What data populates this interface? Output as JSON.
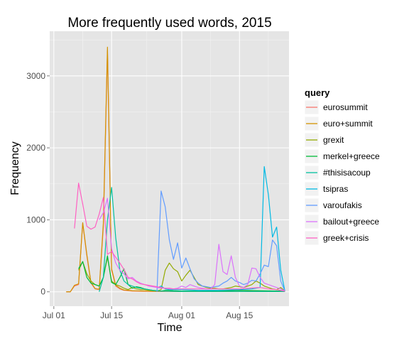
{
  "chart_data": {
    "type": "line",
    "title": "More frequently used words, 2015",
    "xlabel": "Time",
    "ylabel": "Frequency",
    "x_range": [
      "2015-06-30",
      "2015-08-27"
    ],
    "ylim": [
      -200,
      3620
    ],
    "x_ticks": [
      {
        "date": "2015-07-01",
        "label": "Jul 01"
      },
      {
        "date": "2015-07-15",
        "label": "Jul 15"
      },
      {
        "date": "2015-08-01",
        "label": "Aug 01"
      },
      {
        "date": "2015-08-15",
        "label": "Aug 15"
      }
    ],
    "y_ticks": [
      0,
      1000,
      2000,
      3000
    ],
    "grid": true,
    "legend": {
      "title": "query",
      "position": "right"
    },
    "series": [
      {
        "name": "eurosummit",
        "color": "#F8766D",
        "points": [
          [
            "2015-07-04",
            0
          ],
          [
            "2015-07-05",
            0
          ],
          [
            "2015-07-06",
            80
          ],
          [
            "2015-07-07",
            100
          ],
          [
            "2015-07-08",
            950
          ],
          [
            "2015-07-09",
            500
          ],
          [
            "2015-07-10",
            120
          ],
          [
            "2015-07-11",
            40
          ],
          [
            "2015-07-12",
            30
          ],
          [
            "2015-07-13",
            900
          ],
          [
            "2015-07-14",
            3350
          ],
          [
            "2015-07-15",
            300
          ],
          [
            "2015-07-16",
            80
          ],
          [
            "2015-07-17",
            40
          ],
          [
            "2015-07-18",
            20
          ],
          [
            "2015-07-20",
            10
          ],
          [
            "2015-07-25",
            5
          ],
          [
            "2015-08-01",
            5
          ],
          [
            "2015-08-10",
            5
          ],
          [
            "2015-08-20",
            5
          ],
          [
            "2015-08-26",
            5
          ]
        ]
      },
      {
        "name": "euro+summit",
        "color": "#D39200",
        "points": [
          [
            "2015-07-04",
            0
          ],
          [
            "2015-07-05",
            0
          ],
          [
            "2015-07-06",
            90
          ],
          [
            "2015-07-07",
            110
          ],
          [
            "2015-07-08",
            960
          ],
          [
            "2015-07-09",
            520
          ],
          [
            "2015-07-10",
            130
          ],
          [
            "2015-07-11",
            45
          ],
          [
            "2015-07-12",
            35
          ],
          [
            "2015-07-13",
            950
          ],
          [
            "2015-07-14",
            3400
          ],
          [
            "2015-07-15",
            320
          ],
          [
            "2015-07-16",
            90
          ],
          [
            "2015-07-17",
            50
          ],
          [
            "2015-07-18",
            25
          ],
          [
            "2015-07-20",
            15
          ],
          [
            "2015-07-25",
            8
          ],
          [
            "2015-08-01",
            5
          ],
          [
            "2015-08-10",
            5
          ],
          [
            "2015-08-20",
            5
          ],
          [
            "2015-08-26",
            5
          ]
        ]
      },
      {
        "name": "grexit",
        "color": "#93AA00",
        "points": [
          [
            "2015-07-07",
            300
          ],
          [
            "2015-07-08",
            420
          ],
          [
            "2015-07-09",
            250
          ],
          [
            "2015-07-10",
            150
          ],
          [
            "2015-07-11",
            100
          ],
          [
            "2015-07-12",
            80
          ],
          [
            "2015-07-13",
            200
          ],
          [
            "2015-07-14",
            480
          ],
          [
            "2015-07-15",
            150
          ],
          [
            "2015-07-16",
            100
          ],
          [
            "2015-07-17",
            80
          ],
          [
            "2015-07-18",
            50
          ],
          [
            "2015-07-19",
            30
          ],
          [
            "2015-07-20",
            60
          ],
          [
            "2015-07-21",
            40
          ],
          [
            "2015-07-22",
            30
          ],
          [
            "2015-07-23",
            30
          ],
          [
            "2015-07-24",
            20
          ],
          [
            "2015-07-25",
            15
          ],
          [
            "2015-07-26",
            10
          ],
          [
            "2015-07-27",
            30
          ],
          [
            "2015-07-28",
            300
          ],
          [
            "2015-07-29",
            400
          ],
          [
            "2015-07-30",
            320
          ],
          [
            "2015-07-31",
            280
          ],
          [
            "2015-08-01",
            150
          ],
          [
            "2015-08-02",
            230
          ],
          [
            "2015-08-03",
            300
          ],
          [
            "2015-08-04",
            200
          ],
          [
            "2015-08-05",
            100
          ],
          [
            "2015-08-06",
            80
          ],
          [
            "2015-08-07",
            60
          ],
          [
            "2015-08-08",
            50
          ],
          [
            "2015-08-09",
            50
          ],
          [
            "2015-08-10",
            40
          ],
          [
            "2015-08-11",
            40
          ],
          [
            "2015-08-12",
            50
          ],
          [
            "2015-08-13",
            60
          ],
          [
            "2015-08-14",
            80
          ],
          [
            "2015-08-15",
            70
          ],
          [
            "2015-08-16",
            60
          ],
          [
            "2015-08-17",
            80
          ],
          [
            "2015-08-18",
            100
          ],
          [
            "2015-08-19",
            150
          ],
          [
            "2015-08-20",
            120
          ],
          [
            "2015-08-21",
            80
          ],
          [
            "2015-08-22",
            60
          ],
          [
            "2015-08-23",
            40
          ],
          [
            "2015-08-24",
            30
          ],
          [
            "2015-08-25",
            60
          ],
          [
            "2015-08-26",
            10
          ]
        ]
      },
      {
        "name": "merkel+greece",
        "color": "#00BA38",
        "points": [
          [
            "2015-07-07",
            320
          ],
          [
            "2015-07-08",
            420
          ],
          [
            "2015-07-09",
            200
          ],
          [
            "2015-07-10",
            120
          ],
          [
            "2015-07-11",
            100
          ],
          [
            "2015-07-12",
            80
          ],
          [
            "2015-07-13",
            200
          ],
          [
            "2015-07-14",
            500
          ],
          [
            "2015-07-15",
            130
          ],
          [
            "2015-07-16",
            100
          ],
          [
            "2015-07-17",
            200
          ],
          [
            "2015-07-18",
            320
          ],
          [
            "2015-07-19",
            100
          ],
          [
            "2015-07-20",
            50
          ],
          [
            "2015-07-21",
            70
          ],
          [
            "2015-07-22",
            60
          ],
          [
            "2015-07-23",
            40
          ],
          [
            "2015-07-24",
            30
          ],
          [
            "2015-07-25",
            20
          ],
          [
            "2015-07-26",
            15
          ],
          [
            "2015-07-27",
            10
          ],
          [
            "2015-07-28",
            20
          ],
          [
            "2015-07-29",
            20
          ],
          [
            "2015-07-30",
            15
          ],
          [
            "2015-08-01",
            10
          ],
          [
            "2015-08-05",
            10
          ],
          [
            "2015-08-10",
            15
          ],
          [
            "2015-08-15",
            20
          ],
          [
            "2015-08-20",
            15
          ],
          [
            "2015-08-26",
            10
          ]
        ]
      },
      {
        "name": "#thisisacoup",
        "color": "#00C19F",
        "points": [
          [
            "2015-07-12",
            0
          ],
          [
            "2015-07-13",
            200
          ],
          [
            "2015-07-14",
            1000
          ],
          [
            "2015-07-15",
            1450
          ],
          [
            "2015-07-16",
            750
          ],
          [
            "2015-07-17",
            300
          ],
          [
            "2015-07-18",
            150
          ],
          [
            "2015-07-19",
            100
          ],
          [
            "2015-07-20",
            80
          ],
          [
            "2015-07-21",
            60
          ],
          [
            "2015-07-22",
            50
          ],
          [
            "2015-07-23",
            40
          ],
          [
            "2015-07-24",
            30
          ],
          [
            "2015-07-25",
            20
          ],
          [
            "2015-07-26",
            15
          ],
          [
            "2015-07-27",
            10
          ],
          [
            "2015-08-01",
            5
          ],
          [
            "2015-08-10",
            5
          ],
          [
            "2015-08-20",
            5
          ],
          [
            "2015-08-26",
            5
          ]
        ]
      },
      {
        "name": "tsipras",
        "color": "#00B9E3",
        "points": [
          [
            "2015-07-26",
            50
          ],
          [
            "2015-07-27",
            80
          ],
          [
            "2015-07-28",
            40
          ],
          [
            "2015-07-29",
            30
          ],
          [
            "2015-07-30",
            30
          ],
          [
            "2015-08-01",
            30
          ],
          [
            "2015-08-05",
            20
          ],
          [
            "2015-08-10",
            20
          ],
          [
            "2015-08-15",
            30
          ],
          [
            "2015-08-18",
            40
          ],
          [
            "2015-08-20",
            60
          ],
          [
            "2015-08-21",
            1740
          ],
          [
            "2015-08-22",
            1350
          ],
          [
            "2015-08-23",
            760
          ],
          [
            "2015-08-24",
            900
          ],
          [
            "2015-08-25",
            300
          ],
          [
            "2015-08-26",
            10
          ]
        ]
      },
      {
        "name": "varoufakis",
        "color": "#619CFF",
        "points": [
          [
            "2015-07-26",
            1
          ],
          [
            "2015-07-27",
            1400
          ],
          [
            "2015-07-28",
            1180
          ],
          [
            "2015-07-29",
            720
          ],
          [
            "2015-07-30",
            450
          ],
          [
            "2015-07-31",
            680
          ],
          [
            "2015-08-01",
            330
          ],
          [
            "2015-08-02",
            470
          ],
          [
            "2015-08-03",
            320
          ],
          [
            "2015-08-04",
            180
          ],
          [
            "2015-08-05",
            120
          ],
          [
            "2015-08-06",
            80
          ],
          [
            "2015-08-07",
            70
          ],
          [
            "2015-08-08",
            60
          ],
          [
            "2015-08-09",
            70
          ],
          [
            "2015-08-10",
            80
          ],
          [
            "2015-08-11",
            120
          ],
          [
            "2015-08-12",
            150
          ],
          [
            "2015-08-13",
            200
          ],
          [
            "2015-08-14",
            150
          ],
          [
            "2015-08-15",
            130
          ],
          [
            "2015-08-16",
            100
          ],
          [
            "2015-08-17",
            120
          ],
          [
            "2015-08-18",
            160
          ],
          [
            "2015-08-19",
            150
          ],
          [
            "2015-08-20",
            250
          ],
          [
            "2015-08-21",
            370
          ],
          [
            "2015-08-22",
            350
          ],
          [
            "2015-08-23",
            720
          ],
          [
            "2015-08-24",
            640
          ],
          [
            "2015-08-25",
            150
          ],
          [
            "2015-08-26",
            10
          ]
        ]
      },
      {
        "name": "bailout+greece",
        "color": "#DB72FB",
        "points": [
          [
            "2015-07-12",
            1000
          ],
          [
            "2015-07-13",
            1100
          ],
          [
            "2015-07-14",
            1300
          ],
          [
            "2015-07-15",
            600
          ],
          [
            "2015-07-16",
            400
          ],
          [
            "2015-07-17",
            300
          ],
          [
            "2015-07-18",
            250
          ],
          [
            "2015-07-19",
            180
          ],
          [
            "2015-07-20",
            200
          ],
          [
            "2015-07-21",
            150
          ],
          [
            "2015-07-22",
            120
          ],
          [
            "2015-07-23",
            100
          ],
          [
            "2015-07-24",
            80
          ],
          [
            "2015-07-25",
            70
          ],
          [
            "2015-07-26",
            60
          ],
          [
            "2015-07-27",
            50
          ],
          [
            "2015-07-28",
            50
          ],
          [
            "2015-07-29",
            40
          ],
          [
            "2015-07-30",
            40
          ],
          [
            "2015-07-31",
            50
          ],
          [
            "2015-08-01",
            80
          ],
          [
            "2015-08-02",
            60
          ],
          [
            "2015-08-03",
            100
          ],
          [
            "2015-08-04",
            80
          ],
          [
            "2015-08-05",
            60
          ],
          [
            "2015-08-06",
            50
          ],
          [
            "2015-08-07",
            40
          ],
          [
            "2015-08-08",
            40
          ],
          [
            "2015-08-09",
            100
          ],
          [
            "2015-08-10",
            660
          ],
          [
            "2015-08-11",
            280
          ],
          [
            "2015-08-12",
            240
          ],
          [
            "2015-08-13",
            500
          ],
          [
            "2015-08-14",
            200
          ],
          [
            "2015-08-15",
            80
          ],
          [
            "2015-08-16",
            60
          ],
          [
            "2015-08-17",
            100
          ],
          [
            "2015-08-18",
            330
          ],
          [
            "2015-08-19",
            320
          ],
          [
            "2015-08-20",
            200
          ],
          [
            "2015-08-21",
            120
          ],
          [
            "2015-08-22",
            100
          ],
          [
            "2015-08-23",
            80
          ],
          [
            "2015-08-24",
            60
          ],
          [
            "2015-08-25",
            40
          ],
          [
            "2015-08-26",
            10
          ]
        ]
      },
      {
        "name": "greek+crisis",
        "color": "#FF61C3",
        "points": [
          [
            "2015-07-06",
            880
          ],
          [
            "2015-07-07",
            1510
          ],
          [
            "2015-07-08",
            1220
          ],
          [
            "2015-07-09",
            910
          ],
          [
            "2015-07-10",
            870
          ],
          [
            "2015-07-11",
            900
          ],
          [
            "2015-07-12",
            1080
          ],
          [
            "2015-07-13",
            1310
          ],
          [
            "2015-07-14",
            520
          ],
          [
            "2015-07-15",
            560
          ],
          [
            "2015-07-16",
            480
          ],
          [
            "2015-07-17",
            400
          ],
          [
            "2015-07-18",
            310
          ],
          [
            "2015-07-19",
            200
          ],
          [
            "2015-07-20",
            180
          ],
          [
            "2015-07-21",
            140
          ],
          [
            "2015-07-22",
            110
          ],
          [
            "2015-07-23",
            100
          ],
          [
            "2015-07-24",
            90
          ],
          [
            "2015-07-25",
            80
          ],
          [
            "2015-07-26",
            70
          ],
          [
            "2015-07-27",
            60
          ],
          [
            "2015-07-28",
            50
          ],
          [
            "2015-07-29",
            50
          ],
          [
            "2015-07-30",
            40
          ],
          [
            "2015-07-31",
            40
          ],
          [
            "2015-08-01",
            40
          ],
          [
            "2015-08-05",
            40
          ],
          [
            "2015-08-10",
            40
          ],
          [
            "2015-08-15",
            40
          ],
          [
            "2015-08-20",
            60
          ],
          [
            "2015-08-22",
            40
          ],
          [
            "2015-08-24",
            30
          ],
          [
            "2015-08-26",
            10
          ]
        ]
      }
    ]
  }
}
